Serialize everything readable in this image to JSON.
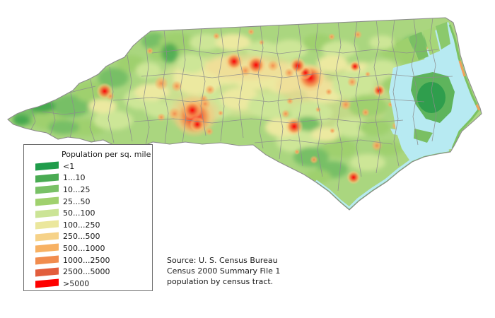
{
  "legend": {
    "title": "Population per sq. mile",
    "items": [
      {
        "label": "<1",
        "color": "#1f9c4a"
      },
      {
        "label": "1...10",
        "color": "#49ab52"
      },
      {
        "label": "10...25",
        "color": "#79c166"
      },
      {
        "label": "25...50",
        "color": "#a0d16e"
      },
      {
        "label": "50...100",
        "color": "#cbe496"
      },
      {
        "label": "100...250",
        "color": "#ebe79d"
      },
      {
        "label": "250...500",
        "color": "#f6d288"
      },
      {
        "label": "500...1000",
        "color": "#f7b163"
      },
      {
        "label": "1000...2500",
        "color": "#f18c4e"
      },
      {
        "label": "2500...5000",
        "color": "#e25e3d"
      },
      {
        "label": ">5000",
        "color": "#fe0100"
      }
    ]
  },
  "source": {
    "lines": [
      "Source: U. S. Census Bureau",
      "Census 2000 Summary File 1",
      "population by census tract."
    ]
  },
  "map": {
    "colors": {
      "water": "#b7eaf2",
      "land_base": "#aad67f",
      "county_line": "#8c8c8c",
      "background": "#ffffff"
    }
  }
}
